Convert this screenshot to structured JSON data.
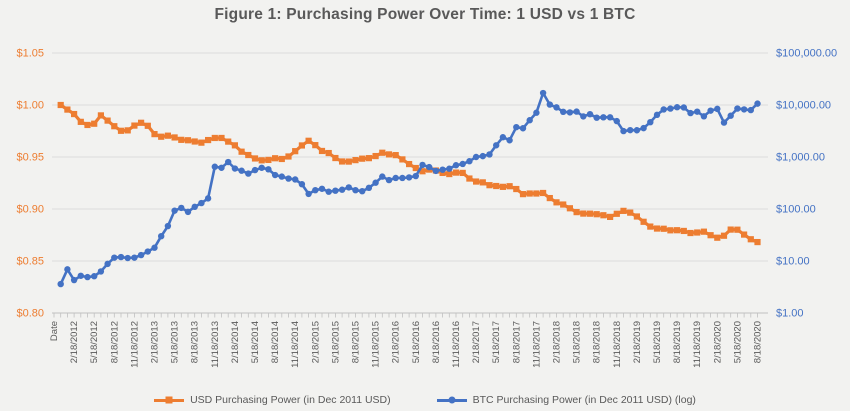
{
  "chart_data": {
    "type": "line",
    "title": "Figure 1: Purchasing Power Over Time: 1 USD vs 1 BTC",
    "legend_position": "bottom",
    "grid": "horizontal-only",
    "x_axis": {
      "first_category_label": "Date",
      "x_start": "12/18/2011",
      "x_end": "8/18/2020",
      "x_frequency": "monthly",
      "tick_labels_every": 3,
      "tick_labels": [
        "Date",
        "2/18/2012",
        "5/18/2012",
        "8/18/2012",
        "11/18/2012",
        "2/18/2013",
        "5/18/2013",
        "8/18/2013",
        "11/18/2013",
        "2/18/2014",
        "5/18/2014",
        "8/18/2014",
        "11/18/2014",
        "2/18/2015",
        "5/18/2015",
        "8/18/2015",
        "11/18/2015",
        "2/18/2016",
        "5/18/2016",
        "8/18/2016",
        "11/18/2016",
        "2/18/2017",
        "5/18/2017",
        "8/18/2017",
        "11/18/2017",
        "2/18/2018",
        "5/18/2018",
        "8/18/2018",
        "11/18/2018",
        "2/18/2019",
        "5/18/2019",
        "8/18/2019",
        "11/18/2019",
        "2/18/2020",
        "5/18/2020",
        "8/18/2020"
      ]
    },
    "left_axis": {
      "scale": "linear",
      "min": 0.8,
      "max": 1.05,
      "tick_labels": [
        "$1.05",
        "$1.00",
        "$0.95",
        "$0.90",
        "$0.85",
        "$0.80"
      ],
      "color": "#ED7D31"
    },
    "right_axis": {
      "scale": "log",
      "min": 1,
      "max": 100000,
      "tick_labels": [
        "$100,000.00",
        "$10,000.00",
        "$1,000.00",
        "$100.00",
        "$10.00",
        "$1.00"
      ],
      "color": "#4472C4"
    },
    "series": [
      {
        "name": "USD Purchasing Power (in Dec 2011 USD)",
        "axis": "left",
        "color": "#ED7D31",
        "marker": "square",
        "values": [
          1.0,
          0.9956,
          0.9913,
          0.9838,
          0.9808,
          0.982,
          0.99,
          0.985,
          0.9796,
          0.9752,
          0.9756,
          0.9802,
          0.9829,
          0.98,
          0.972,
          0.9695,
          0.9705,
          0.9688,
          0.9665,
          0.9661,
          0.9649,
          0.9638,
          0.9663,
          0.9683,
          0.9683,
          0.9648,
          0.9612,
          0.9551,
          0.9519,
          0.9486,
          0.9468,
          0.9472,
          0.9488,
          0.9481,
          0.9505,
          0.9556,
          0.9611,
          0.9656,
          0.9614,
          0.9558,
          0.9538,
          0.949,
          0.9457,
          0.9456,
          0.947,
          0.9484,
          0.9489,
          0.9509,
          0.9541,
          0.9525,
          0.9518,
          0.9477,
          0.9432,
          0.9394,
          0.9363,
          0.9379,
          0.937,
          0.9347,
          0.9336,
          0.935,
          0.9347,
          0.9293,
          0.9264,
          0.9256,
          0.9229,
          0.9221,
          0.9213,
          0.9219,
          0.9192,
          0.9143,
          0.9149,
          0.9149,
          0.9154,
          0.9105,
          0.9064,
          0.9043,
          0.9007,
          0.897,
          0.8956,
          0.8955,
          0.895,
          0.894,
          0.8924,
          0.8954,
          0.8982,
          0.8965,
          0.8928,
          0.8877,
          0.8831,
          0.8812,
          0.881,
          0.8795,
          0.8796,
          0.8789,
          0.8769,
          0.8774,
          0.8782,
          0.8748,
          0.8724,
          0.8743,
          0.8802,
          0.8801,
          0.8754,
          0.8709,
          0.8682
        ]
      },
      {
        "name": "BTC Purchasing Power (in Dec 2011 USD) (log)",
        "axis": "right",
        "color": "#4472C4",
        "marker": "circle",
        "values": [
          3.6,
          6.9,
          4.3,
          5.2,
          4.9,
          5.1,
          6.3,
          8.8,
          11.6,
          11.9,
          11.4,
          11.6,
          13.0,
          15.2,
          18,
          30,
          47,
          93,
          105,
          88,
          110,
          130,
          160,
          650,
          620,
          800,
          600,
          545,
          480,
          560,
          620,
          580,
          450,
          420,
          385,
          370,
          300,
          195,
          230,
          245,
          215,
          225,
          235,
          260,
          230,
          220,
          255,
          320,
          420,
          360,
          395,
          395,
          405,
          430,
          705,
          640,
          540,
          570,
          595,
          695,
          735,
          830,
          1000,
          1040,
          1120,
          1680,
          2400,
          2100,
          3750,
          3570,
          5100,
          7100,
          17000,
          10200,
          9000,
          7400,
          7200,
          7470,
          6030,
          6660,
          5700,
          5800,
          5800,
          4900,
          3150,
          3280,
          3270,
          3590,
          4670,
          6470,
          8200,
          8530,
          9060,
          8970,
          6990,
          7450,
          6060,
          7790,
          8420,
          4590,
          6220,
          8540,
          8230,
          7980,
          10630
        ]
      }
    ],
    "style": {
      "background": "#F2F2F0",
      "gridline_color": "#DCDCDC",
      "axis_line_color": "#C0C0C0",
      "axis_text_color": "#595959",
      "title_color": "#595959"
    }
  }
}
